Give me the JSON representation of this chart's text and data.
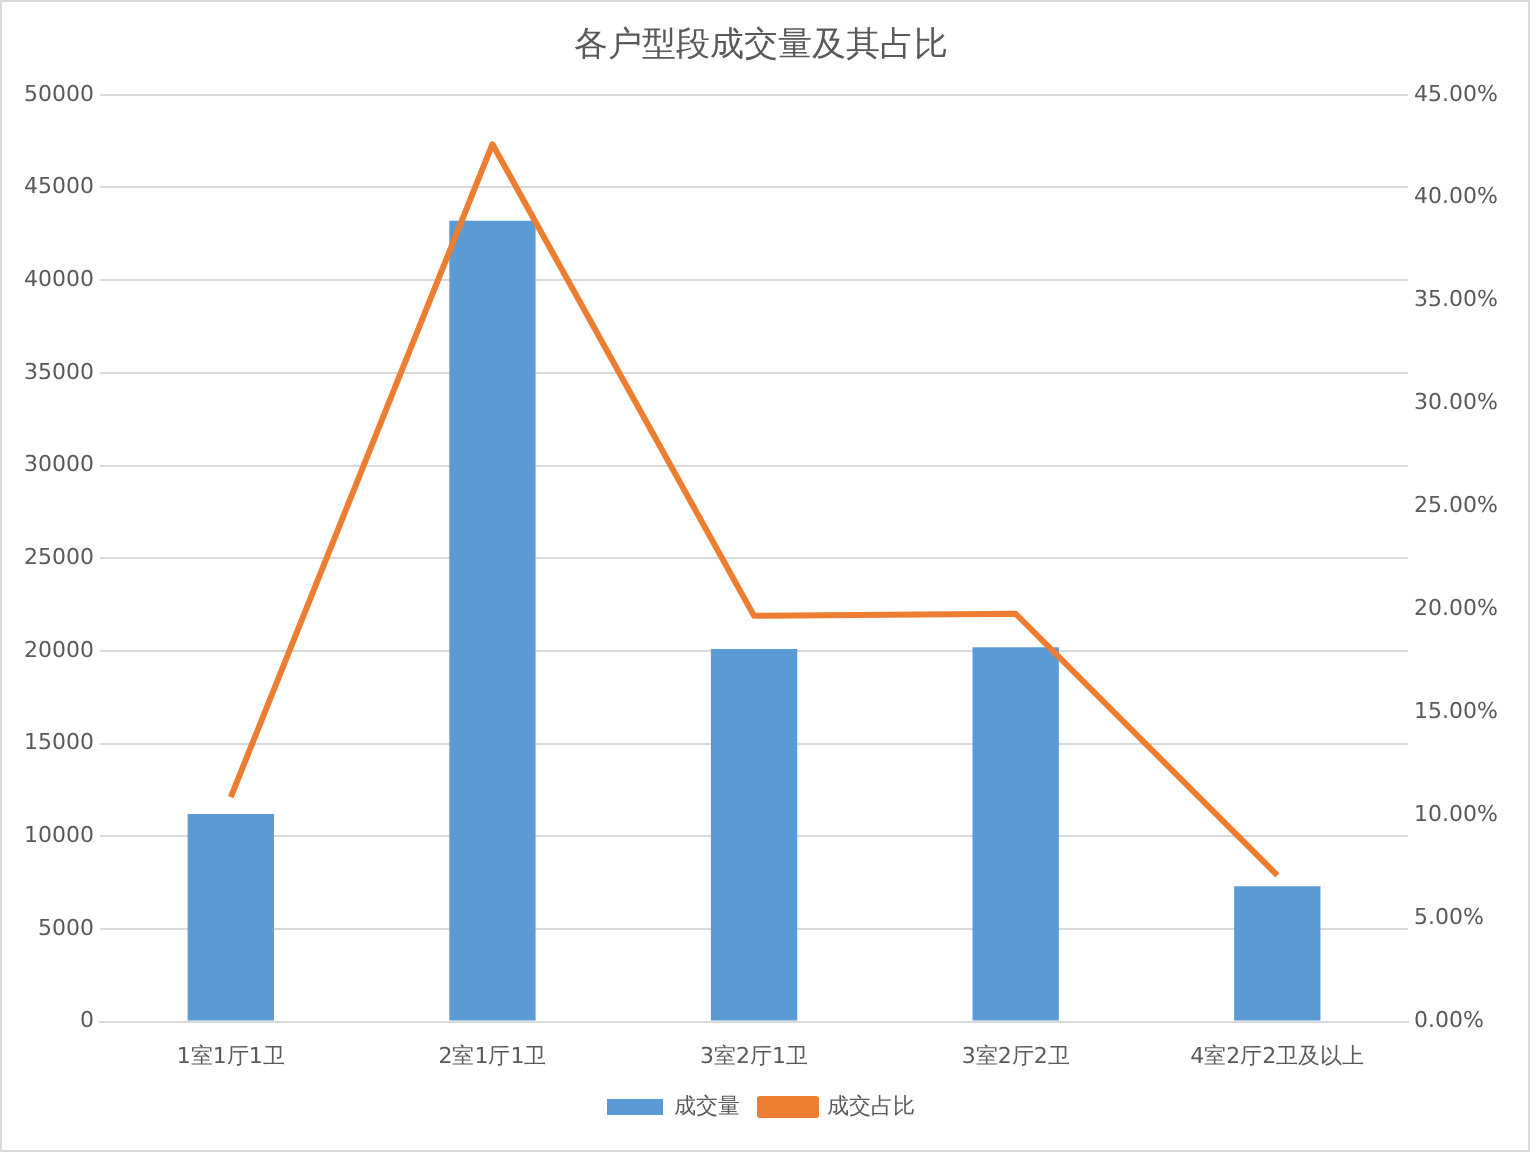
{
  "chart_data": {
    "type": "bar",
    "title": "各户型段成交量及其占比",
    "categories": [
      "1室1厅1卫",
      "2室1厅1卫",
      "3室2厅1卫",
      "3室2厅2卫",
      "4室2厅2卫及以上"
    ],
    "series": [
      {
        "name": "成交量",
        "color": "#5b9bd5",
        "values": [
          11200,
          43200,
          20100,
          20200,
          7300
        ]
      },
      {
        "name": "成交占比",
        "type": "line",
        "axis": "y2",
        "color": "#ed7d31",
        "values": [
          10.9,
          42.6,
          19.7,
          19.8,
          7.1
        ]
      }
    ],
    "ylim": [
      0,
      50000
    ],
    "yticks": [
      0,
      5000,
      10000,
      15000,
      20000,
      25000,
      30000,
      35000,
      40000,
      45000,
      50000
    ],
    "y2lim": [
      0,
      45
    ],
    "y2ticks": [
      {
        "value": 0,
        "label": "0.00%"
      },
      {
        "value": 5,
        "label": "5.00%"
      },
      {
        "value": 10,
        "label": "10.00%"
      },
      {
        "value": 15,
        "label": "15.00%"
      },
      {
        "value": 20,
        "label": "20.00%"
      },
      {
        "value": 25,
        "label": "25.00%"
      },
      {
        "value": 30,
        "label": "30.00%"
      },
      {
        "value": 35,
        "label": "35.00%"
      },
      {
        "value": 40,
        "label": "40.00%"
      },
      {
        "value": 45,
        "label": "45.00%"
      }
    ],
    "grid": "y",
    "legend": "bottom",
    "marker": "none"
  }
}
